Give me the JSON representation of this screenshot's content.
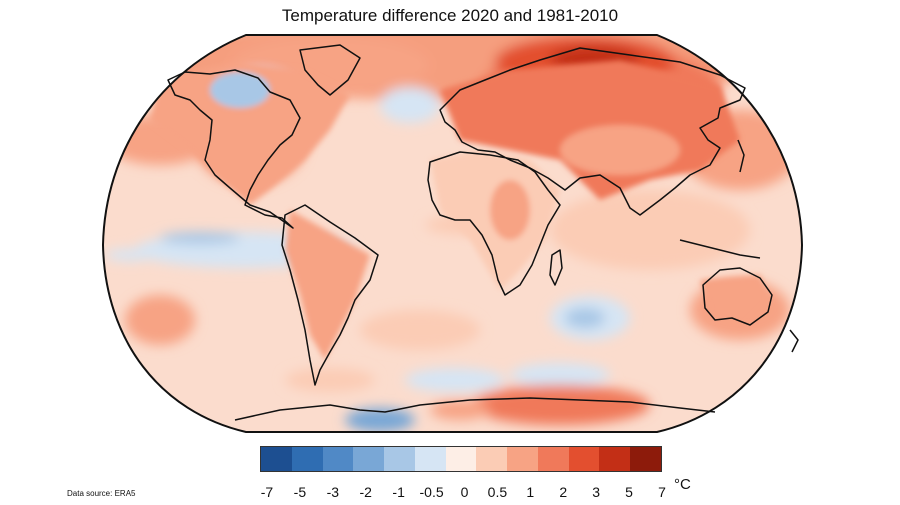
{
  "title": "Temperature difference 2020 and 1981-2010",
  "map": {
    "projection": "Robinson",
    "variable": "Surface air temperature anomaly",
    "ocean_base_color": "#fbdccd",
    "outline_color": "#111111"
  },
  "colorbar": {
    "bins": [
      "#1d4f91",
      "#2f6db2",
      "#5089c6",
      "#79a7d6",
      "#a8c7e6",
      "#d6e5f4",
      "#fdeee6",
      "#fbccb5",
      "#f7a384",
      "#f0795a",
      "#e34f2f",
      "#c32f16",
      "#8d1b0b"
    ],
    "tick_labels": [
      "-7",
      "-5",
      "-3",
      "-2",
      "-1",
      "-0.5",
      "0",
      "0.5",
      "1",
      "2",
      "3",
      "5",
      "7"
    ],
    "unit": "°C"
  },
  "source": "Data source: ERA5"
}
